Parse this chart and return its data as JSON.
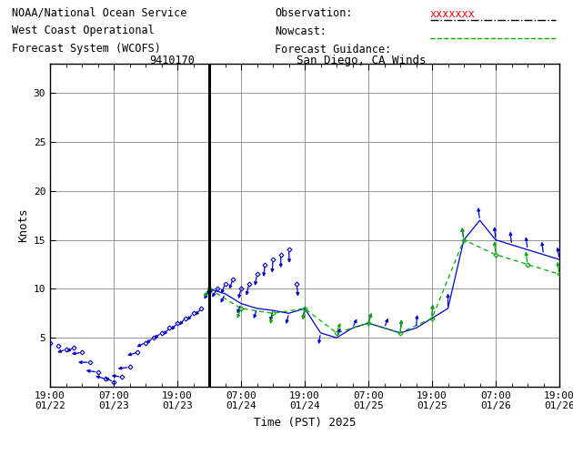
{
  "title_left_line1": "NOAA/National Ocean Service",
  "title_left_line2": "West Coast Operational",
  "title_left_line3": "Forecast System (WCOFS)",
  "station_id": "9410170",
  "station_name": "San Diego, CA Winds",
  "xlabel": "Time (PST) 2025",
  "ylabel": "Knots",
  "ylim": [
    0,
    33
  ],
  "yticks": [
    5,
    10,
    15,
    20,
    25,
    30
  ],
  "ytick_labels": [
    "5",
    "10",
    "15",
    "20",
    "25",
    "30"
  ],
  "background_color": "#ffffff",
  "grid_color": "#888888",
  "obs_color": "#0000cc",
  "forecast_color": "#00aa00",
  "legend_obs_label": "Observation:",
  "legend_nowcast_label": "Nowcast:",
  "legend_forecast_label": "Forecast Guidance:",
  "font_family": "monospace",
  "title_fontsize": 8.5,
  "axis_fontsize": 9,
  "tick_fontsize": 8,
  "xlim_hours": [
    -4.0,
    12.0
  ],
  "vline_pos": 1.0,
  "x_major_ticks": [
    -4,
    -2,
    0,
    2,
    4,
    6,
    8,
    10,
    12
  ],
  "x_tick_labels": [
    "19:00\n01/22",
    "07:00\n01/23",
    "19:00\n01/23",
    "07:00\n01/24",
    "19:00\n01/24",
    "07:00\n01/25",
    "19:00\n01/25",
    "07:00\n01/26",
    "19:00\n01/26"
  ],
  "obs_arrows": [
    {
      "t": -4.0,
      "spd": 4.5,
      "u": -0.5,
      "v": -0.4
    },
    {
      "t": -3.75,
      "spd": 4.2,
      "u": -0.6,
      "v": -0.3
    },
    {
      "t": -3.5,
      "spd": 3.8,
      "u": -0.7,
      "v": -0.2
    },
    {
      "t": -3.25,
      "spd": 4.0,
      "u": -0.6,
      "v": -0.3
    },
    {
      "t": -3.0,
      "spd": 3.5,
      "u": -0.8,
      "v": -0.1
    },
    {
      "t": -2.75,
      "spd": 2.5,
      "u": -0.9,
      "v": 0.0
    },
    {
      "t": -2.5,
      "spd": 1.5,
      "u": -0.9,
      "v": 0.1
    },
    {
      "t": -2.25,
      "spd": 0.8,
      "u": -0.8,
      "v": 0.2
    },
    {
      "t": -2.0,
      "spd": 0.5,
      "u": -0.7,
      "v": 0.3
    },
    {
      "t": -1.75,
      "spd": 1.0,
      "u": -0.8,
      "v": 0.1
    },
    {
      "t": -1.5,
      "spd": 2.0,
      "u": -0.9,
      "v": -0.1
    },
    {
      "t": -1.25,
      "spd": 3.5,
      "u": -0.8,
      "v": -0.2
    },
    {
      "t": -1.0,
      "spd": 4.5,
      "u": -0.7,
      "v": -0.3
    },
    {
      "t": -0.75,
      "spd": 5.0,
      "u": -0.6,
      "v": -0.4
    },
    {
      "t": -0.5,
      "spd": 5.5,
      "u": -0.6,
      "v": -0.4
    },
    {
      "t": -0.25,
      "spd": 6.0,
      "u": -0.5,
      "v": -0.5
    },
    {
      "t": 0.0,
      "spd": 6.5,
      "u": -0.5,
      "v": -0.5
    },
    {
      "t": 0.25,
      "spd": 7.0,
      "u": -0.5,
      "v": -0.5
    },
    {
      "t": 0.5,
      "spd": 7.5,
      "u": -0.5,
      "v": -0.5
    },
    {
      "t": 0.75,
      "spd": 8.0,
      "u": -0.5,
      "v": -0.5
    },
    {
      "t": 1.0,
      "spd": 9.8,
      "u": -0.4,
      "v": -0.6
    },
    {
      "t": 1.25,
      "spd": 10.0,
      "u": -0.4,
      "v": -0.6
    },
    {
      "t": 1.5,
      "spd": 10.5,
      "u": -0.3,
      "v": -0.7
    },
    {
      "t": 1.75,
      "spd": 11.0,
      "u": -0.3,
      "v": -0.7
    },
    {
      "t": 2.0,
      "spd": 10.0,
      "u": -0.2,
      "v": -0.7
    },
    {
      "t": 2.25,
      "spd": 10.5,
      "u": -0.2,
      "v": -0.8
    },
    {
      "t": 2.5,
      "spd": 11.5,
      "u": -0.15,
      "v": -0.8
    },
    {
      "t": 2.75,
      "spd": 12.5,
      "u": -0.1,
      "v": -0.85
    },
    {
      "t": 3.0,
      "spd": 13.0,
      "u": -0.05,
      "v": -0.9
    },
    {
      "t": 3.25,
      "spd": 13.5,
      "u": 0.0,
      "v": -0.9
    },
    {
      "t": 3.5,
      "spd": 14.0,
      "u": 0.05,
      "v": -0.9
    },
    {
      "t": 3.75,
      "spd": 10.5,
      "u": 0.1,
      "v": -0.85
    }
  ],
  "nowcast_arrows": [
    {
      "t": 1.0,
      "spd": 10.0,
      "u": -0.4,
      "v": -0.6
    },
    {
      "t": 1.5,
      "spd": 9.5,
      "u": -0.35,
      "v": -0.65
    },
    {
      "t": 2.0,
      "spd": 8.5,
      "u": -0.3,
      "v": -0.7
    },
    {
      "t": 2.5,
      "spd": 8.0,
      "u": -0.25,
      "v": -0.72
    },
    {
      "t": 3.0,
      "spd": 7.8,
      "u": -0.2,
      "v": -0.75
    },
    {
      "t": 3.5,
      "spd": 7.5,
      "u": -0.2,
      "v": -0.75
    },
    {
      "t": 4.0,
      "spd": 8.0,
      "u": -0.15,
      "v": -0.78
    },
    {
      "t": 4.5,
      "spd": 5.5,
      "u": -0.15,
      "v": -0.78
    },
    {
      "t": 5.0,
      "spd": 5.0,
      "u": 0.3,
      "v": 0.7
    },
    {
      "t": 5.5,
      "spd": 6.0,
      "u": 0.35,
      "v": 0.65
    },
    {
      "t": 6.0,
      "spd": 6.5,
      "u": 0.25,
      "v": 0.72
    },
    {
      "t": 6.5,
      "spd": 6.0,
      "u": 0.3,
      "v": 0.7
    },
    {
      "t": 7.0,
      "spd": 5.5,
      "u": 0.1,
      "v": 0.9
    },
    {
      "t": 7.5,
      "spd": 6.0,
      "u": 0.08,
      "v": 0.9
    },
    {
      "t": 8.0,
      "spd": 7.0,
      "u": 0.05,
      "v": 0.92
    },
    {
      "t": 8.5,
      "spd": 8.0,
      "u": 0.0,
      "v": 1.0
    },
    {
      "t": 9.0,
      "spd": 15.0,
      "u": -0.15,
      "v": 0.85
    },
    {
      "t": 9.5,
      "spd": 17.0,
      "u": -0.12,
      "v": 0.88
    },
    {
      "t": 10.0,
      "spd": 15.0,
      "u": -0.1,
      "v": 0.9
    },
    {
      "t": 10.5,
      "spd": 14.5,
      "u": -0.1,
      "v": 0.9
    },
    {
      "t": 11.0,
      "spd": 14.0,
      "u": -0.12,
      "v": 0.88
    },
    {
      "t": 11.5,
      "spd": 13.5,
      "u": -0.12,
      "v": 0.88
    },
    {
      "t": 12.0,
      "spd": 13.0,
      "u": -0.15,
      "v": 0.85
    }
  ],
  "forecast_arrows": [
    {
      "t": 1.0,
      "spd": 10.0,
      "u": -0.4,
      "v": -0.6
    },
    {
      "t": 2.0,
      "spd": 8.0,
      "u": -0.3,
      "v": -0.7
    },
    {
      "t": 3.0,
      "spd": 7.5,
      "u": -0.2,
      "v": -0.75
    },
    {
      "t": 4.0,
      "spd": 8.0,
      "u": -0.15,
      "v": -0.78
    },
    {
      "t": 5.0,
      "spd": 5.5,
      "u": 0.3,
      "v": 0.7
    },
    {
      "t": 6.0,
      "spd": 6.5,
      "u": 0.25,
      "v": 0.72
    },
    {
      "t": 7.0,
      "spd": 5.5,
      "u": 0.1,
      "v": 0.9
    },
    {
      "t": 8.0,
      "spd": 7.0,
      "u": 0.05,
      "v": 0.92
    },
    {
      "t": 9.0,
      "spd": 15.0,
      "u": -0.15,
      "v": 0.85
    },
    {
      "t": 10.0,
      "spd": 13.5,
      "u": -0.1,
      "v": 0.9
    },
    {
      "t": 11.0,
      "spd": 12.5,
      "u": -0.12,
      "v": 0.88
    },
    {
      "t": 12.0,
      "spd": 11.5,
      "u": -0.15,
      "v": 0.85
    }
  ]
}
